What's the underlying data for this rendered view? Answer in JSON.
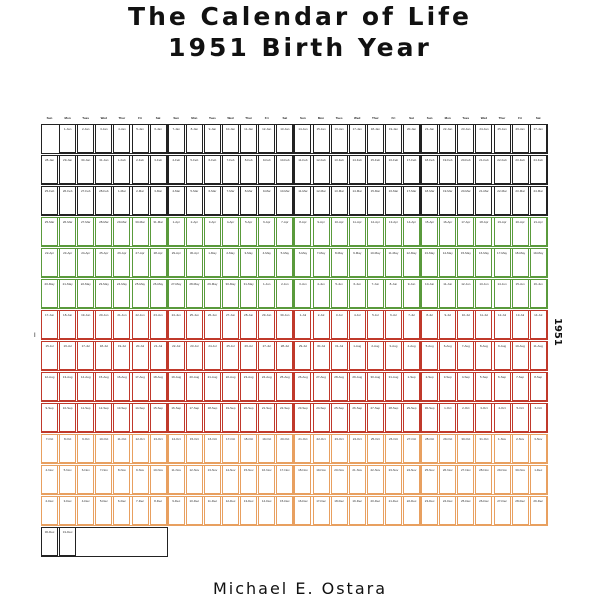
{
  "cover": {
    "title_line1": "The Calendar of Life",
    "title_line2": "1951 Birth Year",
    "author": "Michael E. Ostara",
    "side_label": "1951"
  },
  "calendar": {
    "weekday_headers": [
      "Sun",
      "Mon",
      "Tues",
      "Wed",
      "Thur",
      "Fri",
      "Sat"
    ],
    "start_offset": 1,
    "row_border_colors": [
      "#222222",
      "#222222",
      "#222222",
      "#5a9a3c",
      "#5a9a3c",
      "#5a9a3c",
      "#c0392b",
      "#c0392b",
      "#c0392b",
      "#c0392b",
      "#e8a060",
      "#e8a060",
      "#e8a060",
      "#222222"
    ],
    "months": [
      {
        "abbr": "Jan",
        "days": 31
      },
      {
        "abbr": "Feb",
        "days": 28
      },
      {
        "abbr": "Mar",
        "days": 31
      },
      {
        "abbr": "Apr",
        "days": 30
      },
      {
        "abbr": "May",
        "days": 31
      },
      {
        "abbr": "Jun",
        "days": 30
      },
      {
        "abbr": "Jul",
        "days": 31
      },
      {
        "abbr": "Aug",
        "days": 31
      },
      {
        "abbr": "Sep",
        "days": 30
      },
      {
        "abbr": "Oct",
        "days": 31
      },
      {
        "abbr": "Nov",
        "days": 30
      },
      {
        "abbr": "Dec",
        "days": 31
      }
    ]
  }
}
